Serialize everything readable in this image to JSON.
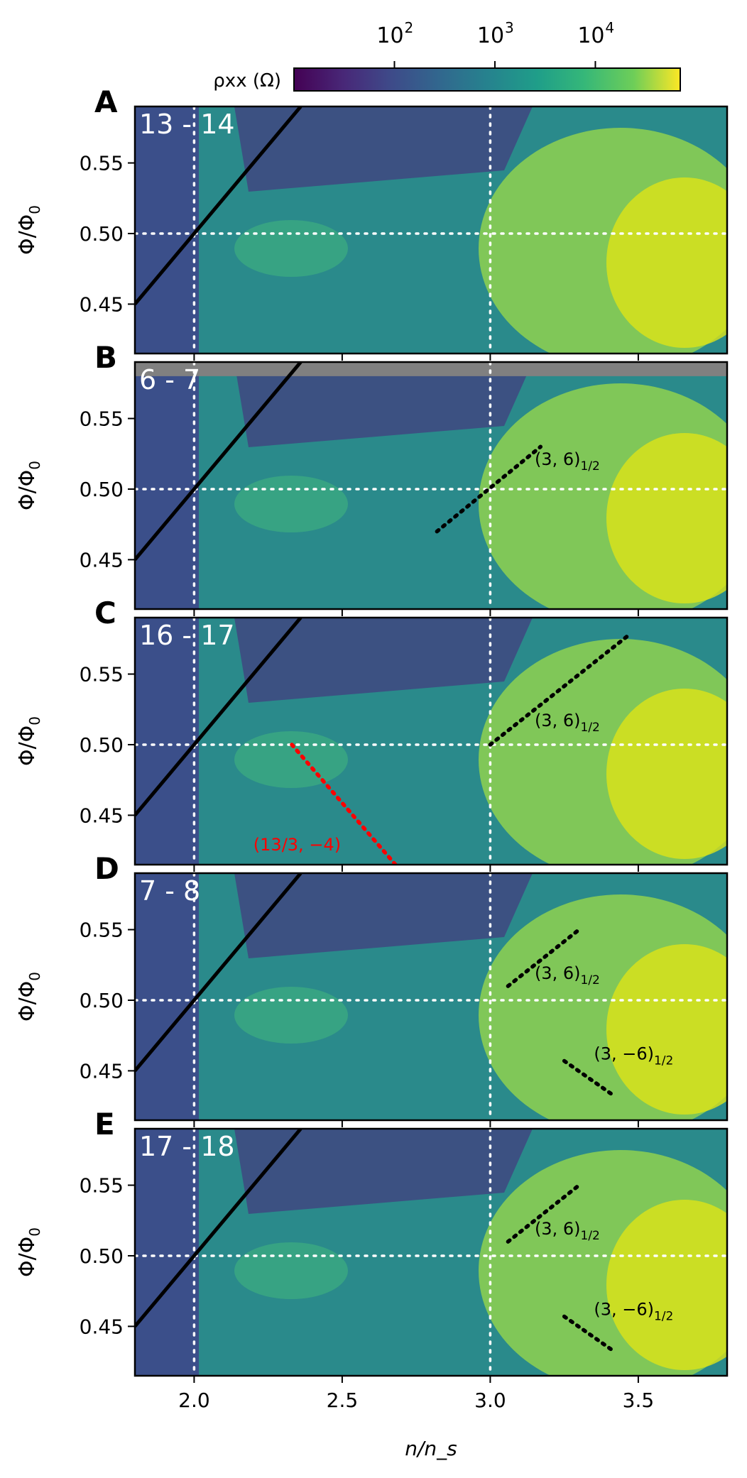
{
  "chart_data": {
    "type": "heatmap",
    "x_axis": {
      "label": "n/n_s",
      "range": [
        1.8,
        3.8
      ],
      "ticks": [
        2.0,
        2.5,
        3.0,
        3.5
      ],
      "tick_labels": [
        "2.0",
        "2.5",
        "3.0",
        "3.5"
      ]
    },
    "y_axis": {
      "label": "Φ/Φ0",
      "range": [
        0.415,
        0.59
      ],
      "ticks": [
        0.45,
        0.5,
        0.55
      ],
      "tick_labels": [
        "0.45",
        "0.50",
        "0.55"
      ]
    },
    "colorbar": {
      "label": "ρxx (Ω)",
      "scale": "log",
      "range": [
        10,
        70000
      ],
      "ticks": [
        100,
        1000,
        10000
      ],
      "tick_labels": [
        "10",
        "10",
        "10"
      ],
      "tick_exponents": [
        "2",
        "3",
        "4"
      ],
      "colormap": "viridis"
    },
    "reference_lines": {
      "x": [
        2.0,
        3.0
      ],
      "y": [
        0.5
      ],
      "style": "white dotted"
    },
    "panels": [
      {
        "letter": "A",
        "label": "13 - 14",
        "lines": [
          {
            "style": "solid",
            "color": "#000000",
            "x": [
              1.8,
              2.36
            ],
            "y": [
              0.45,
              0.59
            ]
          }
        ],
        "annotations": []
      },
      {
        "letter": "B",
        "label": "6 - 7",
        "masked_top_y": 0.58,
        "lines": [
          {
            "style": "solid",
            "color": "#000000",
            "x": [
              1.8,
              2.36
            ],
            "y": [
              0.45,
              0.59
            ]
          },
          {
            "style": "dotted",
            "color": "#000000",
            "x": [
              2.82,
              3.17
            ],
            "y": [
              0.47,
              0.53
            ]
          }
        ],
        "annotations": [
          {
            "text": "(3, 6)",
            "sub": "1/2",
            "x": 3.15,
            "y": 0.517,
            "color": "#000000"
          }
        ]
      },
      {
        "letter": "C",
        "label": "16 - 17",
        "lines": [
          {
            "style": "solid",
            "color": "#000000",
            "x": [
              1.8,
              2.36
            ],
            "y": [
              0.45,
              0.59
            ]
          },
          {
            "style": "dotted",
            "color": "#000000",
            "x": [
              3.0,
              3.47
            ],
            "y": [
              0.5,
              0.578
            ]
          },
          {
            "style": "dotted",
            "color": "#ff0000",
            "x": [
              2.33,
              2.68
            ],
            "y": [
              0.5,
              0.415
            ]
          }
        ],
        "annotations": [
          {
            "text": "(3, 6)",
            "sub": "1/2",
            "x": 3.15,
            "y": 0.513,
            "color": "#000000"
          },
          {
            "text": "(13/3, −4)",
            "sub": "",
            "x": 2.2,
            "y": 0.425,
            "color": "#ff0000"
          }
        ]
      },
      {
        "letter": "D",
        "label": "7 - 8",
        "lines": [
          {
            "style": "solid",
            "color": "#000000",
            "x": [
              1.8,
              2.36
            ],
            "y": [
              0.45,
              0.59
            ]
          },
          {
            "style": "dotted",
            "color": "#000000",
            "x": [
              3.06,
              3.3
            ],
            "y": [
              0.51,
              0.55
            ]
          },
          {
            "style": "dotted",
            "color": "#000000",
            "x": [
              3.25,
              3.42
            ],
            "y": [
              0.457,
              0.432
            ]
          }
        ],
        "annotations": [
          {
            "text": "(3, 6)",
            "sub": "1/2",
            "x": 3.15,
            "y": 0.515,
            "color": "#000000"
          },
          {
            "text": "(3, −6)",
            "sub": "1/2",
            "x": 3.35,
            "y": 0.458,
            "color": "#000000"
          }
        ]
      },
      {
        "letter": "E",
        "label": "17 - 18",
        "lines": [
          {
            "style": "solid",
            "color": "#000000",
            "x": [
              1.8,
              2.36
            ],
            "y": [
              0.45,
              0.59
            ]
          },
          {
            "style": "dotted",
            "color": "#000000",
            "x": [
              3.06,
              3.3
            ],
            "y": [
              0.51,
              0.55
            ]
          },
          {
            "style": "dotted",
            "color": "#000000",
            "x": [
              3.25,
              3.42
            ],
            "y": [
              0.457,
              0.432
            ]
          }
        ],
        "annotations": [
          {
            "text": "(3, 6)",
            "sub": "1/2",
            "x": 3.15,
            "y": 0.515,
            "color": "#000000"
          },
          {
            "text": "(3, −6)",
            "sub": "1/2",
            "x": 3.35,
            "y": 0.458,
            "color": "#000000"
          }
        ]
      }
    ]
  }
}
